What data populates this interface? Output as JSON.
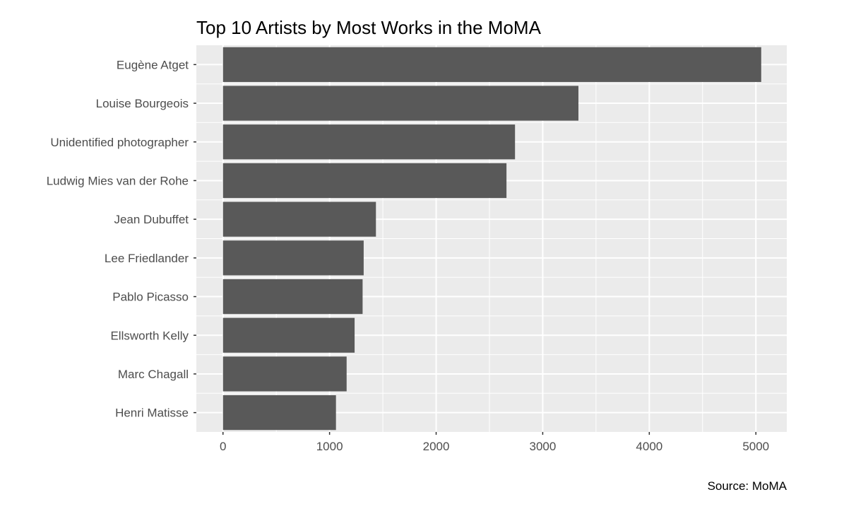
{
  "chart_data": {
    "type": "bar",
    "orientation": "horizontal",
    "title": "Top 10 Artists by Most Works in the MoMA",
    "caption": "Source: MoMA",
    "xlabel": "",
    "ylabel": "",
    "categories": [
      "Eugène Atget",
      "Louise Bourgeois",
      "Unidentified photographer",
      "Ludwig Mies van der Rohe",
      "Jean Dubuffet",
      "Lee Friedlander",
      "Pablo Picasso",
      "Ellsworth Kelly",
      "Marc Chagall",
      "Henri Matisse"
    ],
    "values": [
      5050,
      3335,
      2740,
      2660,
      1435,
      1320,
      1310,
      1235,
      1160,
      1060
    ],
    "xlim": [
      -250,
      5290
    ],
    "xticks": [
      0,
      1000,
      2000,
      3000,
      4000,
      5000
    ],
    "grid": true,
    "legend": "none",
    "colors": {
      "bar": "#595959",
      "panel": "#ebebeb",
      "grid": "#ffffff",
      "tick_label": "#4d4d4d",
      "text": "#000000"
    }
  }
}
